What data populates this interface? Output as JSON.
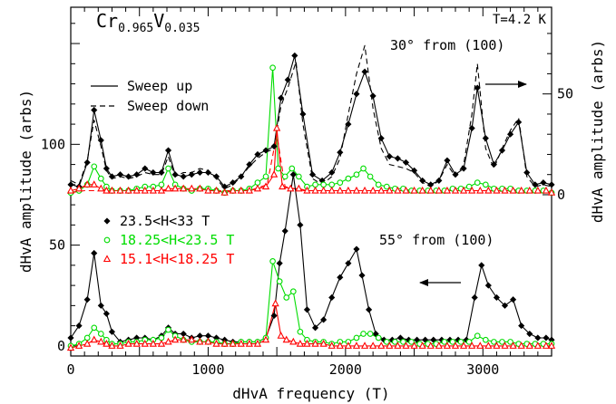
{
  "chart_data": {
    "type": "line",
    "title_main": "Cr",
    "title_sub1": "0.965",
    "title_mid": "V",
    "title_sub2": "0.035",
    "temperature": "T=4.2 K",
    "xlabel": "dHvA frequency (T)",
    "ylabel_left": "dHvA amplitude (arbs)",
    "ylabel_right": "dHvA amplitude (arbs)",
    "xlim": [
      0,
      3500
    ],
    "ylim_left": [
      -5,
      168
    ],
    "x_ticks": [
      "0",
      "1000",
      "2000",
      "3000"
    ],
    "y_ticks_left": [
      "0",
      "50",
      "100"
    ],
    "y_ticks_right": [
      "0",
      "50"
    ],
    "right_axis_offset": 75,
    "panel_top_label": "30° from (100)",
    "panel_bottom_label": "55°  from (100)",
    "style_legend": [
      {
        "label": "Sweep up",
        "dash": "solid"
      },
      {
        "label": "Sweep down",
        "dash": "dashed"
      }
    ],
    "field_legend": [
      {
        "label": "23.5<H<33 T",
        "color": "#000000",
        "marker": "diamond"
      },
      {
        "label": "18.25<H<23.5 T",
        "color": "#00dd00",
        "marker": "circle"
      },
      {
        "label": "15.1<H<18.25 T",
        "color": "#ff0000",
        "marker": "triangle"
      }
    ],
    "panels": [
      {
        "name": "30° from (100)",
        "right_axis": true,
        "series": [
          {
            "field": 0,
            "dash": "solid",
            "markers": true,
            "x": [
              0,
              60,
              120,
              170,
              220,
              260,
              300,
              360,
              420,
              480,
              540,
              600,
              660,
              710,
              760,
              820,
              880,
              940,
              1000,
              1060,
              1120,
              1180,
              1240,
              1300,
              1360,
              1420,
              1480,
              1530,
              1580,
              1630,
              1690,
              1760,
              1830,
              1900,
              1960,
              2020,
              2080,
              2140,
              2200,
              2260,
              2320,
              2380,
              2440,
              2500,
              2560,
              2620,
              2680,
              2740,
              2800,
              2860,
              2920,
              2960,
              3020,
              3080,
              3140,
              3200,
              3260,
              3320,
              3380,
              3440,
              3500
            ],
            "y": [
              80,
              79,
              91,
              117,
              102,
              88,
              84,
              85,
              84,
              85,
              88,
              86,
              86,
              97,
              85,
              84,
              85,
              86,
              86,
              84,
              79,
              81,
              84,
              90,
              95,
              97,
              99,
              123,
              132,
              144,
              115,
              85,
              82,
              86,
              96,
              110,
              125,
              136,
              124,
              103,
              94,
              93,
              91,
              87,
              82,
              80,
              82,
              92,
              85,
              88,
              108,
              128,
              103,
              90,
              97,
              105,
              111,
              86,
              80,
              81,
              80
            ]
          },
          {
            "field": 0,
            "dash": "dashed",
            "markers": false,
            "x": [
              0,
              60,
              120,
              170,
              220,
              260,
              300,
              360,
              420,
              480,
              540,
              600,
              660,
              710,
              760,
              820,
              880,
              940,
              1000,
              1060,
              1120,
              1180,
              1240,
              1300,
              1360,
              1420,
              1480,
              1530,
              1580,
              1640,
              1690,
              1760,
              1830,
              1900,
              1960,
              2020,
              2080,
              2140,
              2200,
              2260,
              2320,
              2380,
              2440,
              2500,
              2560,
              2620,
              2680,
              2740,
              2800,
              2860,
              2920,
              2960,
              3020,
              3080,
              3140,
              3200,
              3260,
              3320,
              3380,
              3440,
              3500
            ],
            "y": [
              82,
              80,
              92,
              112,
              99,
              87,
              83,
              84,
              83,
              84,
              86,
              85,
              85,
              94,
              84,
              86,
              86,
              88,
              87,
              83,
              78,
              80,
              84,
              89,
              93,
              96,
              98,
              119,
              128,
              141,
              110,
              83,
              80,
              84,
              93,
              115,
              135,
              149,
              118,
              98,
              90,
              89,
              88,
              86,
              81,
              79,
              82,
              90,
              84,
              90,
              115,
              140,
              98,
              88,
              98,
              107,
              113,
              84,
              79,
              80,
              79
            ]
          },
          {
            "field": 1,
            "dash": "solid",
            "markers": true,
            "x": [
              0,
              60,
              120,
              170,
              220,
              260,
              300,
              360,
              420,
              480,
              540,
              600,
              660,
              710,
              760,
              820,
              880,
              940,
              1000,
              1060,
              1120,
              1180,
              1240,
              1300,
              1360,
              1420,
              1470,
              1510,
              1560,
              1610,
              1660,
              1720,
              1780,
              1840,
              1900,
              1960,
              2020,
              2080,
              2130,
              2180,
              2240,
              2300,
              2360,
              2420,
              2480,
              2540,
              2600,
              2660,
              2720,
              2780,
              2840,
              2900,
              2960,
              3020,
              3080,
              3140,
              3200,
              3260,
              3320,
              3380,
              3440,
              3500
            ],
            "y": [
              76,
              77,
              80,
              89,
              83,
              79,
              77,
              77,
              77,
              78,
              79,
              79,
              80,
              88,
              80,
              78,
              77,
              78,
              78,
              77,
              76,
              77,
              77,
              78,
              81,
              84,
              138,
              88,
              84,
              88,
              84,
              79,
              80,
              80,
              80,
              81,
              83,
              85,
              88,
              84,
              80,
              79,
              78,
              78,
              77,
              77,
              77,
              77,
              77,
              78,
              78,
              79,
              81,
              80,
              78,
              78,
              78,
              77,
              77,
              77,
              77,
              76
            ]
          },
          {
            "field": 2,
            "dash": "solid",
            "markers": true,
            "x": [
              0,
              60,
              120,
              170,
              220,
              260,
              300,
              360,
              420,
              480,
              540,
              600,
              660,
              710,
              760,
              820,
              880,
              940,
              1000,
              1060,
              1120,
              1180,
              1240,
              1300,
              1360,
              1420,
              1480,
              1500,
              1540,
              1600,
              1660,
              1720,
              1780,
              1840,
              1900,
              1960,
              2020,
              2080,
              2140,
              2200,
              2260,
              2320,
              2380,
              2440,
              2500,
              2560,
              2620,
              2680,
              2740,
              2800,
              2860,
              2920,
              2980,
              3040,
              3100,
              3160,
              3220,
              3280,
              3340,
              3400,
              3460,
              3500
            ],
            "y": [
              77,
              78,
              80,
              80,
              78,
              77,
              77,
              77,
              77,
              77,
              77,
              77,
              77,
              78,
              78,
              78,
              78,
              78,
              77,
              77,
              76,
              77,
              77,
              77,
              78,
              79,
              85,
              108,
              79,
              78,
              78,
              77,
              77,
              77,
              77,
              77,
              77,
              77,
              77,
              77,
              77,
              77,
              77,
              77,
              77,
              77,
              77,
              77,
              77,
              77,
              77,
              77,
              77,
              77,
              77,
              77,
              77,
              77,
              77,
              77,
              77,
              76
            ]
          },
          {
            "field": 2,
            "dash": "dashed",
            "markers": false,
            "x": [
              0,
              100,
              300,
              600,
              1000,
              1300,
              1430,
              1500,
              1560,
              1700,
              2000,
              2500,
              3000,
              3500
            ],
            "y": [
              76,
              77,
              77,
              77,
              77,
              77,
              80,
              105,
              79,
              77,
              77,
              77,
              77,
              76
            ]
          }
        ]
      },
      {
        "name": "55°  from (100)",
        "right_axis": false,
        "series": [
          {
            "field": 0,
            "dash": "solid",
            "markers": true,
            "x": [
              0,
              60,
              120,
              170,
              220,
              260,
              300,
              360,
              420,
              480,
              540,
              600,
              660,
              710,
              760,
              820,
              880,
              940,
              1000,
              1060,
              1120,
              1180,
              1240,
              1300,
              1360,
              1420,
              1480,
              1520,
              1560,
              1620,
              1670,
              1720,
              1780,
              1840,
              1900,
              1960,
              2020,
              2080,
              2120,
              2170,
              2220,
              2280,
              2340,
              2400,
              2460,
              2520,
              2580,
              2640,
              2700,
              2760,
              2820,
              2880,
              2940,
              2990,
              3040,
              3100,
              3160,
              3220,
              3280,
              3340,
              3400,
              3460,
              3500
            ],
            "y": [
              4,
              10,
              23,
              46,
              20,
              16,
              7,
              2,
              3,
              4,
              4,
              3,
              5,
              9,
              6,
              6,
              4,
              5,
              5,
              4,
              3,
              2,
              2,
              2,
              2,
              4,
              15,
              41,
              57,
              85,
              60,
              18,
              9,
              13,
              24,
              34,
              41,
              48,
              35,
              18,
              6,
              3,
              3,
              4,
              3,
              3,
              3,
              3,
              3,
              3,
              3,
              3,
              24,
              40,
              30,
              24,
              20,
              23,
              10,
              6,
              4,
              4,
              3
            ]
          },
          {
            "field": 1,
            "dash": "solid",
            "markers": true,
            "x": [
              0,
              60,
              120,
              170,
              220,
              260,
              300,
              360,
              420,
              480,
              540,
              600,
              660,
              710,
              760,
              820,
              880,
              940,
              1000,
              1060,
              1120,
              1180,
              1240,
              1300,
              1360,
              1420,
              1470,
              1520,
              1570,
              1620,
              1670,
              1720,
              1780,
              1840,
              1900,
              1960,
              2020,
              2080,
              2130,
              2180,
              2240,
              2300,
              2360,
              2420,
              2480,
              2540,
              2600,
              2660,
              2720,
              2780,
              2840,
              2900,
              2960,
              3020,
              3080,
              3140,
              3200,
              3260,
              3320,
              3380,
              3440,
              3500
            ],
            "y": [
              0,
              1,
              4,
              9,
              6,
              3,
              1,
              1,
              2,
              2,
              3,
              3,
              4,
              8,
              5,
              3,
              2,
              2,
              2,
              2,
              1,
              1,
              2,
              2,
              2,
              4,
              42,
              32,
              24,
              27,
              7,
              3,
              2,
              2,
              1,
              2,
              2,
              4,
              6,
              6,
              4,
              2,
              2,
              2,
              2,
              1,
              1,
              1,
              2,
              2,
              2,
              2,
              5,
              3,
              2,
              2,
              2,
              1,
              1,
              1,
              1,
              1
            ]
          },
          {
            "field": 2,
            "dash": "solid",
            "markers": true,
            "x": [
              0,
              60,
              120,
              170,
              220,
              260,
              300,
              360,
              420,
              480,
              540,
              600,
              660,
              710,
              760,
              820,
              880,
              940,
              1000,
              1060,
              1120,
              1180,
              1240,
              1300,
              1360,
              1420,
              1490,
              1530,
              1570,
              1620,
              1670,
              1720,
              1780,
              1840,
              1900,
              1960,
              2020,
              2080,
              2140,
              2200,
              2260,
              2320,
              2380,
              2440,
              2500,
              2560,
              2620,
              2680,
              2740,
              2800,
              2860,
              2920,
              2980,
              3040,
              3100,
              3160,
              3220,
              3280,
              3340,
              3400,
              3460,
              3500
            ],
            "y": [
              -1,
              0,
              1,
              3,
              2,
              1,
              0,
              0,
              1,
              1,
              1,
              1,
              1,
              2,
              3,
              3,
              3,
              2,
              2,
              1,
              1,
              1,
              1,
              1,
              1,
              3,
              21,
              5,
              3,
              2,
              1,
              1,
              1,
              1,
              0,
              0,
              0,
              0,
              0,
              0,
              0,
              0,
              0,
              0,
              0,
              0,
              0,
              0,
              0,
              0,
              0,
              0,
              0,
              0,
              0,
              0,
              0,
              0,
              0,
              0,
              0,
              0
            ]
          }
        ]
      }
    ]
  }
}
